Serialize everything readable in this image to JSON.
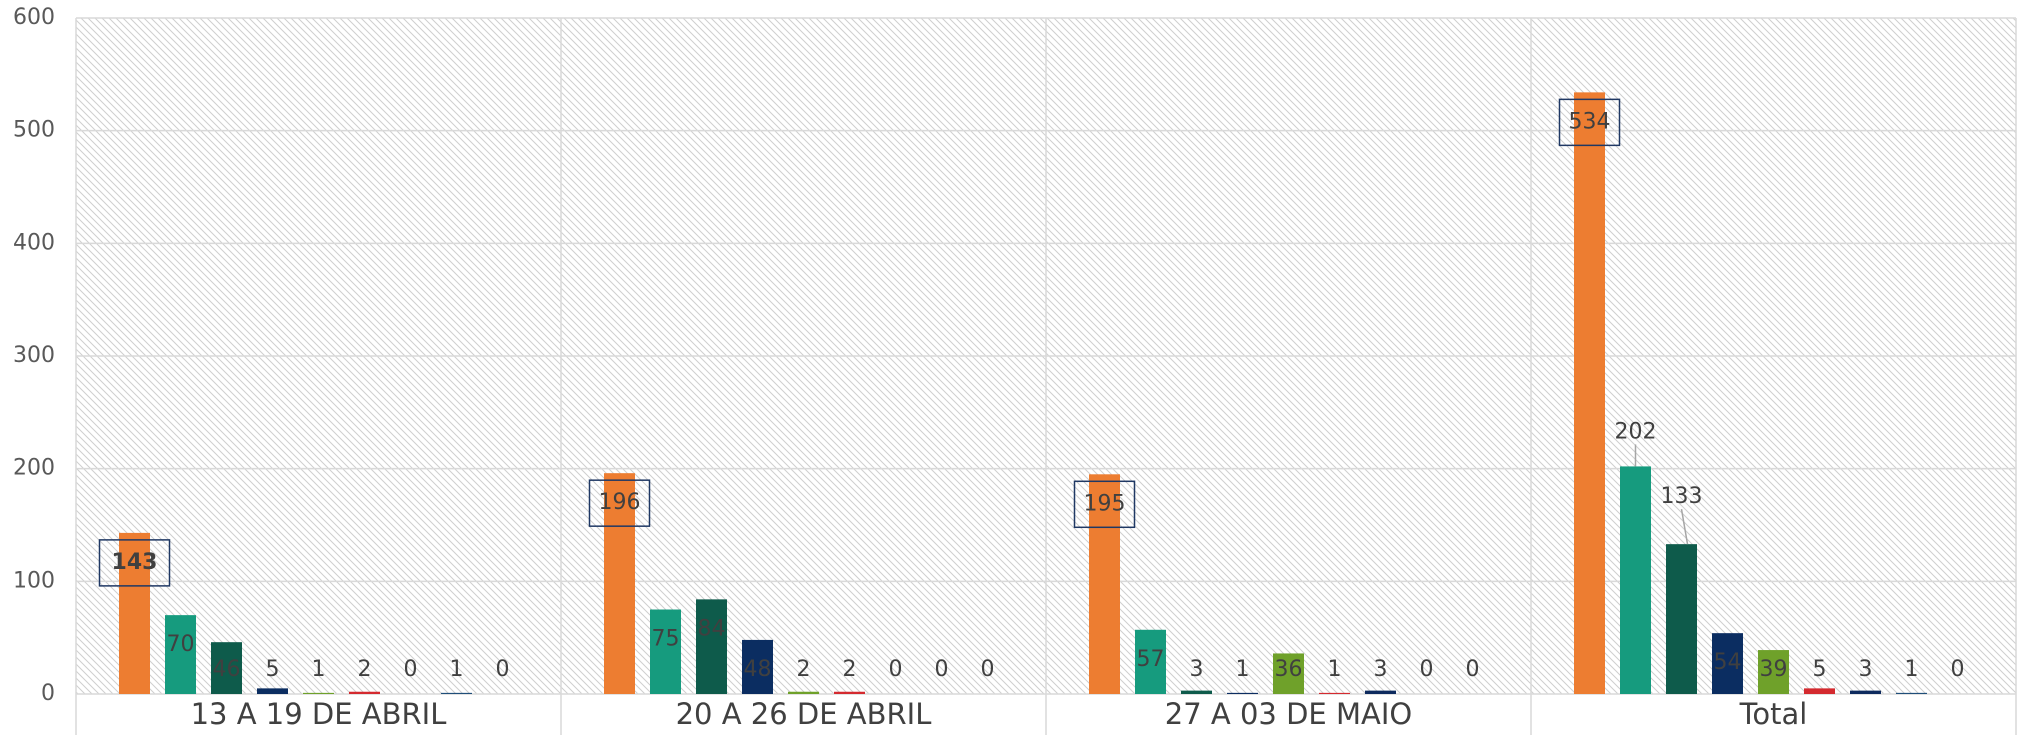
{
  "chart_data": {
    "type": "bar",
    "categories": [
      "13 A 19 DE ABRIL",
      "20 A 26 DE ABRIL",
      "27 A 03 DE MAIO",
      "Total"
    ],
    "series": [
      {
        "color": "#ED7D31",
        "values": [
          143,
          196,
          195,
          534
        ]
      },
      {
        "color": "#169B7E",
        "values": [
          70,
          75,
          57,
          202
        ]
      },
      {
        "color": "#0E5B4B",
        "values": [
          46,
          84,
          3,
          133
        ]
      },
      {
        "color": "#0B2D61",
        "values": [
          5,
          48,
          1,
          54
        ]
      },
      {
        "color": "#6FA12A",
        "values": [
          1,
          2,
          36,
          39
        ]
      },
      {
        "color": "#D42A2F",
        "values": [
          2,
          2,
          1,
          5
        ]
      },
      {
        "color": "#0D2A5E",
        "values": [
          0,
          0,
          3,
          3
        ]
      },
      {
        "color": "#1F4E79",
        "values": [
          1,
          0,
          0,
          1
        ]
      },
      {
        "color": "#7F7F7F",
        "values": [
          0,
          0,
          0,
          0
        ]
      }
    ],
    "ylim": [
      0,
      600
    ],
    "yticks": [
      0,
      100,
      200,
      300,
      400,
      500,
      600
    ],
    "grid": true
  }
}
